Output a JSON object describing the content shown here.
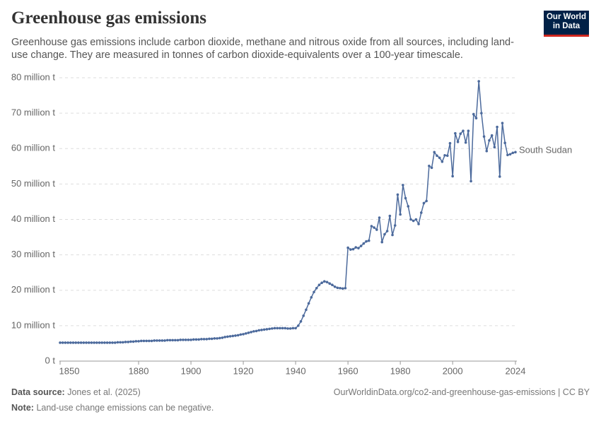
{
  "chart_data": {
    "type": "line",
    "title": "Greenhouse gas emissions",
    "subtitle": "Greenhouse gas emissions include carbon dioxide, methane and nitrous oxide from all sources, including land-use change. They are measured in tonnes of carbon dioxide-equivalents over a 100-year timescale.",
    "logo": [
      "Our World",
      "in Data"
    ],
    "source_label": "Data source:",
    "source": "Jones et al. (2025)",
    "url": "OurWorldinData.org/co2-and-greenhouse-gas-emissions | CC BY",
    "note_label": "Note:",
    "note": "Land-use change emissions can be negative.",
    "x": [
      1850,
      1851,
      1852,
      1853,
      1854,
      1855,
      1856,
      1857,
      1858,
      1859,
      1860,
      1861,
      1862,
      1863,
      1864,
      1865,
      1866,
      1867,
      1868,
      1869,
      1870,
      1871,
      1872,
      1873,
      1874,
      1875,
      1876,
      1877,
      1878,
      1879,
      1880,
      1881,
      1882,
      1883,
      1884,
      1885,
      1886,
      1887,
      1888,
      1889,
      1890,
      1891,
      1892,
      1893,
      1894,
      1895,
      1896,
      1897,
      1898,
      1899,
      1900,
      1901,
      1902,
      1903,
      1904,
      1905,
      1906,
      1907,
      1908,
      1909,
      1910,
      1911,
      1912,
      1913,
      1914,
      1915,
      1916,
      1917,
      1918,
      1919,
      1920,
      1921,
      1922,
      1923,
      1924,
      1925,
      1926,
      1927,
      1928,
      1929,
      1930,
      1931,
      1932,
      1933,
      1934,
      1935,
      1936,
      1937,
      1938,
      1939,
      1940,
      1941,
      1942,
      1943,
      1944,
      1945,
      1946,
      1947,
      1948,
      1949,
      1950,
      1951,
      1952,
      1953,
      1954,
      1955,
      1956,
      1957,
      1958,
      1959,
      1960,
      1961,
      1962,
      1963,
      1964,
      1965,
      1966,
      1967,
      1968,
      1969,
      1970,
      1971,
      1972,
      1973,
      1974,
      1975,
      1976,
      1977,
      1978,
      1979,
      1980,
      1981,
      1982,
      1983,
      1984,
      1985,
      1986,
      1987,
      1988,
      1989,
      1990,
      1991,
      1992,
      1993,
      1994,
      1995,
      1996,
      1997,
      1998,
      1999,
      2000,
      2001,
      2002,
      2003,
      2004,
      2005,
      2006,
      2007,
      2008,
      2009,
      2010,
      2011,
      2012,
      2013,
      2014,
      2015,
      2016,
      2017,
      2018,
      2019,
      2020,
      2021,
      2022,
      2023,
      2024
    ],
    "series": [
      {
        "name": "South Sudan",
        "color": "#4c6a9c",
        "values": [
          5.2,
          5.2,
          5.2,
          5.2,
          5.2,
          5.2,
          5.2,
          5.2,
          5.2,
          5.2,
          5.2,
          5.2,
          5.2,
          5.2,
          5.2,
          5.2,
          5.2,
          5.2,
          5.2,
          5.2,
          5.2,
          5.2,
          5.3,
          5.3,
          5.3,
          5.4,
          5.4,
          5.5,
          5.5,
          5.6,
          5.6,
          5.7,
          5.7,
          5.7,
          5.7,
          5.7,
          5.8,
          5.8,
          5.8,
          5.8,
          5.8,
          5.9,
          5.9,
          5.9,
          5.9,
          5.9,
          6.0,
          6.0,
          6.0,
          6.0,
          6.0,
          6.1,
          6.1,
          6.1,
          6.2,
          6.2,
          6.2,
          6.3,
          6.3,
          6.4,
          6.4,
          6.5,
          6.6,
          6.8,
          6.9,
          7.0,
          7.1,
          7.2,
          7.3,
          7.5,
          7.6,
          7.8,
          8.0,
          8.2,
          8.4,
          8.5,
          8.7,
          8.8,
          8.9,
          9.0,
          9.1,
          9.2,
          9.3,
          9.3,
          9.3,
          9.3,
          9.3,
          9.2,
          9.2,
          9.3,
          9.3,
          10.0,
          11.2,
          12.8,
          14.5,
          16.3,
          18.0,
          19.5,
          20.6,
          21.5,
          22.1,
          22.5,
          22.3,
          21.9,
          21.5,
          21.0,
          20.7,
          20.6,
          20.5,
          20.6,
          32.0,
          31.5,
          31.6,
          32.1,
          31.9,
          32.5,
          33.2,
          33.8,
          34.0,
          38.1,
          37.7,
          37.1,
          40.5,
          33.6,
          35.8,
          36.7,
          41.0,
          35.6,
          38.3,
          47.0,
          41.4,
          49.7,
          46.0,
          43.7,
          40.0,
          39.6,
          40.0,
          38.7,
          41.9,
          44.6,
          45.2,
          55.1,
          54.6,
          59.0,
          58.0,
          57.4,
          56.3,
          58.1,
          58.0,
          61.5,
          52.2,
          64.3,
          61.9,
          64.2,
          65.0,
          61.7,
          65.0,
          50.8,
          69.7,
          68.6,
          79.0,
          70.0,
          63.4,
          59.3,
          62.3,
          63.7,
          60.4,
          66.1,
          52.1,
          67.2,
          61.6,
          58.2,
          58.4,
          58.8,
          59.0
        ]
      }
    ],
    "xlim": [
      1850,
      2024
    ],
    "xticks": [
      1850,
      1880,
      1900,
      1920,
      1940,
      1960,
      1980,
      2000,
      2024
    ],
    "ylim": [
      0,
      80
    ],
    "yticks": [
      {
        "value": 0,
        "label": "0 t"
      },
      {
        "value": 10,
        "label": "10 million t"
      },
      {
        "value": 20,
        "label": "20 million t"
      },
      {
        "value": 30,
        "label": "30 million t"
      },
      {
        "value": 40,
        "label": "40 million t"
      },
      {
        "value": 50,
        "label": "50 million t"
      },
      {
        "value": 60,
        "label": "60 million t"
      },
      {
        "value": 70,
        "label": "70 million t"
      },
      {
        "value": 80,
        "label": "80 million t"
      }
    ],
    "grid": true
  }
}
